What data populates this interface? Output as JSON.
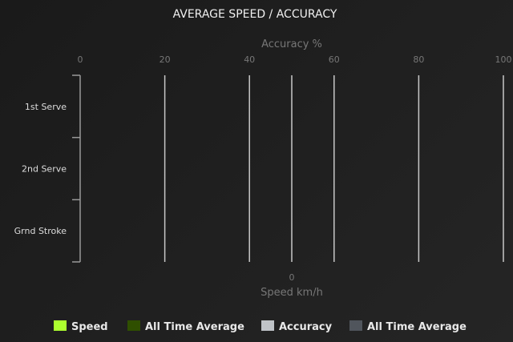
{
  "chart_data": {
    "type": "bar",
    "orientation": "horizontal",
    "title": "AVERAGE SPEED / ACCURACY",
    "categories": [
      "1st Serve",
      "2nd Serve",
      "Grnd Stroke"
    ],
    "x_axis_top": {
      "label": "Accuracy %",
      "range": [
        0,
        100
      ],
      "ticks": [
        0,
        20,
        40,
        60,
        80,
        100
      ]
    },
    "x_axis_bottom": {
      "label": "Speed km/h",
      "ticks": [
        0
      ]
    },
    "series": [
      {
        "name": "Speed",
        "color": "#adff2f",
        "values": [
          null,
          null,
          null
        ]
      },
      {
        "name": "All Time Average",
        "color": "#2f4f00",
        "values": [
          null,
          null,
          null
        ]
      },
      {
        "name": "Accuracy",
        "color": "#c0c4c8",
        "values": [
          null,
          null,
          null
        ]
      },
      {
        "name": "All Time Average",
        "color": "#50555c",
        "values": [
          null,
          null,
          null
        ]
      }
    ],
    "grid": true,
    "legend_placement": "bottom"
  }
}
